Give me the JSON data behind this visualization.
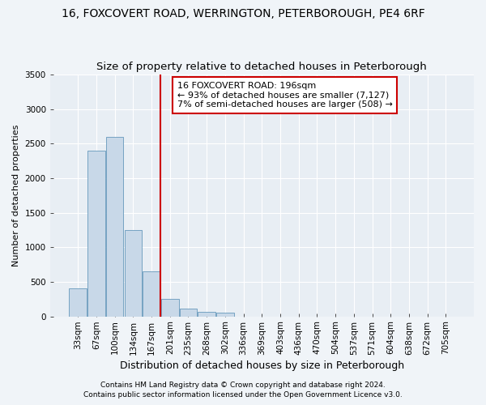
{
  "title": "16, FOXCOVERT ROAD, WERRINGTON, PETERBOROUGH, PE4 6RF",
  "subtitle": "Size of property relative to detached houses in Peterborough",
  "xlabel": "Distribution of detached houses by size in Peterborough",
  "ylabel": "Number of detached properties",
  "categories": [
    "33sqm",
    "67sqm",
    "100sqm",
    "134sqm",
    "167sqm",
    "201sqm",
    "235sqm",
    "268sqm",
    "302sqm",
    "336sqm",
    "369sqm",
    "403sqm",
    "436sqm",
    "470sqm",
    "504sqm",
    "537sqm",
    "571sqm",
    "604sqm",
    "638sqm",
    "672sqm",
    "705sqm"
  ],
  "values": [
    400,
    2400,
    2600,
    1250,
    650,
    250,
    110,
    65,
    50,
    0,
    0,
    0,
    0,
    0,
    0,
    0,
    0,
    0,
    0,
    0,
    0
  ],
  "bar_color": "#c8d8e8",
  "bar_edge_color": "#6699bb",
  "vline_color": "#cc0000",
  "vline_index": 4.5,
  "annotation_text": "16 FOXCOVERT ROAD: 196sqm\n← 93% of detached houses are smaller (7,127)\n7% of semi-detached houses are larger (508) →",
  "annotation_box_facecolor": "#ffffff",
  "annotation_box_edgecolor": "#cc0000",
  "ylim": [
    0,
    3500
  ],
  "yticks": [
    0,
    500,
    1000,
    1500,
    2000,
    2500,
    3000,
    3500
  ],
  "footer1": "Contains HM Land Registry data © Crown copyright and database right 2024.",
  "footer2": "Contains public sector information licensed under the Open Government Licence v3.0.",
  "fig_facecolor": "#f0f4f8",
  "axes_facecolor": "#e8eef4",
  "grid_color": "#ffffff",
  "title_fontsize": 10,
  "subtitle_fontsize": 9.5,
  "xlabel_fontsize": 9,
  "ylabel_fontsize": 8,
  "tick_fontsize": 7.5,
  "annot_fontsize": 8,
  "footer_fontsize": 6.5
}
